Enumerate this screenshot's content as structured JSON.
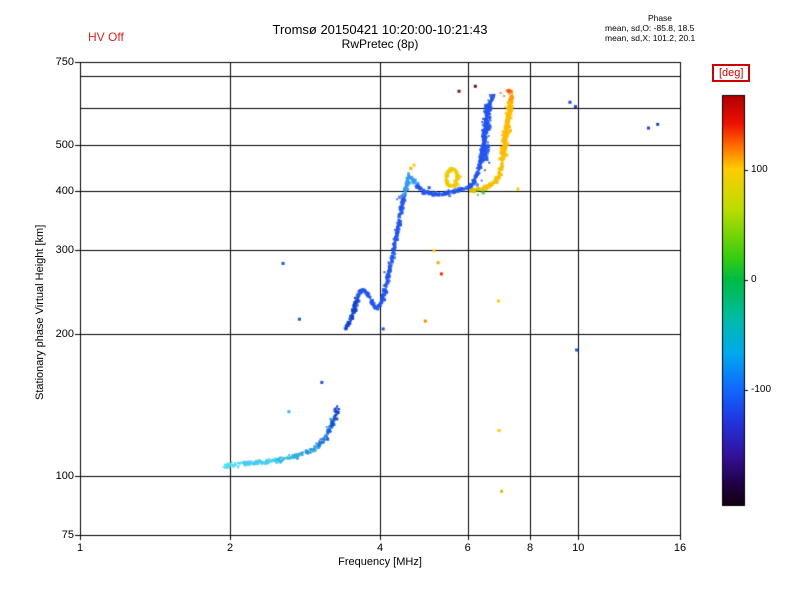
{
  "header": {
    "hv_status": "HV Off",
    "title": "Tromsø 20150421 10:20:00-10:21:43",
    "subtitle": "RwPretec (8p)",
    "phase_block": {
      "label": "Phase",
      "line_o": "mean, sd,O: -85.8, 18.5",
      "line_x": "mean, sd,X: 101.2, 20.1"
    }
  },
  "chart_data": {
    "type": "scatter",
    "title": "Tromsø 20150421 10:20:00-10:21:43",
    "subtitle": "RwPretec (8p)",
    "xlabel": "Frequency [MHz]",
    "ylabel": "Stationary phase Virtual Height [km]",
    "xscale": "log",
    "yscale": "log",
    "xlim": [
      1,
      16
    ],
    "ylim": [
      75,
      750
    ],
    "xticks": [
      1,
      2,
      4,
      6,
      8,
      10,
      16
    ],
    "yticks": [
      750,
      500,
      400,
      300,
      200,
      100,
      75
    ],
    "ygrid": [
      100,
      200,
      300,
      400,
      500,
      600,
      700
    ],
    "grid": true,
    "colorbar": {
      "label": "[deg]",
      "ticks": [
        100,
        0,
        -100
      ],
      "gradient": [
        [
          0,
          "#b00000"
        ],
        [
          0.07,
          "#ee1100"
        ],
        [
          0.12,
          "#ff6600"
        ],
        [
          0.18,
          "#ffcc00"
        ],
        [
          0.28,
          "#bbdd00"
        ],
        [
          0.4,
          "#33cc11"
        ],
        [
          0.45,
          "#00bb44"
        ],
        [
          0.55,
          "#00bbaa"
        ],
        [
          0.63,
          "#00aaee"
        ],
        [
          0.72,
          "#1166ff"
        ],
        [
          0.8,
          "#2233dd"
        ],
        [
          0.88,
          "#331199"
        ],
        [
          0.95,
          "#220044"
        ],
        [
          1,
          "#110011"
        ]
      ]
    },
    "traces": [
      {
        "name": "e-region",
        "color": "#33bbdd",
        "spread": 2.8,
        "density": 1.1,
        "passes": 2,
        "points": [
          [
            1.95,
            105,
            "#55ddee"
          ],
          [
            2.1,
            106,
            "#44ccee"
          ],
          [
            2.3,
            107,
            "#44ccee"
          ],
          [
            2.5,
            108,
            "#33bbdd"
          ],
          [
            2.7,
            110,
            "#33aadd"
          ],
          [
            2.85,
            112,
            "#2299dd"
          ],
          [
            3.0,
            116,
            "#2277dd"
          ],
          [
            3.12,
            121,
            "#1166dd"
          ],
          [
            3.2,
            128,
            "#1155cc"
          ],
          [
            3.26,
            135,
            "#1144cc"
          ],
          [
            3.29,
            140,
            "#2255cc"
          ]
        ]
      },
      {
        "name": "f-region-o",
        "color": "#2255ee",
        "spread": 2.2,
        "density": 1.2,
        "passes": 2,
        "points": [
          [
            3.42,
            205,
            "#1144cc"
          ],
          [
            3.5,
            216,
            "#1144cc"
          ],
          [
            3.56,
            228,
            "#1144cc"
          ],
          [
            3.61,
            240
          ],
          [
            3.67,
            248
          ],
          [
            3.75,
            246
          ],
          [
            3.81,
            237
          ],
          [
            3.87,
            229
          ],
          [
            3.95,
            227
          ],
          [
            4.03,
            234
          ],
          [
            4.1,
            250
          ],
          [
            4.18,
            274
          ],
          [
            4.28,
            308
          ],
          [
            4.38,
            352
          ],
          [
            4.46,
            392,
            "#3399ee"
          ],
          [
            4.52,
            416,
            "#3399ee"
          ],
          [
            4.58,
            430,
            "#3399ee"
          ],
          [
            4.66,
            424,
            "#3399ee"
          ],
          [
            4.75,
            410
          ],
          [
            4.9,
            400
          ],
          [
            5.1,
            394
          ],
          [
            5.3,
            394
          ],
          [
            5.5,
            398
          ],
          [
            5.7,
            402
          ],
          [
            5.9,
            404
          ],
          [
            6.05,
            408
          ],
          [
            6.15,
            416
          ],
          [
            6.25,
            432
          ],
          [
            6.33,
            452
          ],
          [
            6.4,
            480
          ],
          [
            6.46,
            512
          ],
          [
            6.52,
            548
          ],
          [
            6.57,
            582
          ],
          [
            6.61,
            605
          ],
          [
            6.66,
            620
          ],
          [
            6.72,
            630
          ],
          [
            6.78,
            638
          ]
        ]
      },
      {
        "name": "f-region-o-dense",
        "color": "#2255ee",
        "spread": 4.5,
        "density": 1.6,
        "passes": 2,
        "points": [
          [
            6.44,
            465
          ],
          [
            6.5,
            520
          ],
          [
            6.55,
            565
          ],
          [
            6.6,
            608
          ]
        ]
      },
      {
        "name": "x-loop",
        "color": "#eecc00",
        "spread": 2.0,
        "density": 1.1,
        "passes": 2,
        "points": [
          [
            5.42,
            425
          ],
          [
            5.47,
            440
          ],
          [
            5.57,
            447
          ],
          [
            5.67,
            442
          ],
          [
            5.73,
            430
          ],
          [
            5.68,
            415
          ],
          [
            5.57,
            409
          ],
          [
            5.47,
            413
          ],
          [
            5.42,
            425
          ]
        ]
      },
      {
        "name": "f-region-x",
        "color": "#f2c200",
        "spread": 2.2,
        "density": 1.2,
        "passes": 2,
        "points": [
          [
            6.05,
            400,
            "#ddbb00"
          ],
          [
            6.2,
            402,
            "#e6c200"
          ],
          [
            6.35,
            404
          ],
          [
            6.5,
            407
          ],
          [
            6.62,
            411
          ],
          [
            6.75,
            416
          ],
          [
            6.85,
            424
          ],
          [
            6.95,
            436
          ],
          [
            7.03,
            458
          ],
          [
            7.09,
            484
          ],
          [
            7.14,
            512
          ],
          [
            7.19,
            545
          ],
          [
            7.24,
            578
          ],
          [
            7.28,
            604,
            "#ffaa00"
          ],
          [
            7.32,
            626,
            "#ff9900"
          ],
          [
            7.34,
            640,
            "#ff7700"
          ],
          [
            7.28,
            650,
            "#ff5500"
          ],
          [
            7.18,
            654,
            "#ee2200"
          ]
        ]
      },
      {
        "name": "f-region-x-dense",
        "color": "#ffbb00",
        "spread": 4.0,
        "density": 1.5,
        "passes": 2,
        "points": [
          [
            7.06,
            478
          ],
          [
            7.18,
            545
          ],
          [
            7.29,
            615
          ]
        ]
      },
      {
        "name": "x-green-patch",
        "color": "#33bb33",
        "spread": 2.2,
        "density": 0.5,
        "passes": 1,
        "points": [
          [
            6.26,
            394
          ],
          [
            6.38,
            397
          ],
          [
            6.48,
            401
          ]
        ]
      }
    ],
    "points": [
      [
        2.55,
        282,
        "#2255dd"
      ],
      [
        2.75,
        215,
        "#2255dd"
      ],
      [
        2.62,
        137,
        "#33bbdd"
      ],
      [
        3.05,
        158,
        "#2255dd"
      ],
      [
        4.05,
        205,
        "#2255dd"
      ],
      [
        4.6,
        448,
        "#ffaa00"
      ],
      [
        4.67,
        455,
        "#ffcc00"
      ],
      [
        4.92,
        213,
        "#ff8800"
      ],
      [
        5.12,
        300,
        "#ffcc00"
      ],
      [
        5.22,
        283,
        "#ffaa00"
      ],
      [
        5.3,
        268,
        "#ee3300"
      ],
      [
        5.75,
        652,
        "#881111"
      ],
      [
        6.2,
        668,
        "#771111"
      ],
      [
        6.9,
        235,
        "#ffcc00"
      ],
      [
        6.92,
        125,
        "#ffcc00"
      ],
      [
        7.0,
        93,
        "#ddbb00"
      ],
      [
        7.55,
        405,
        "#ffcc00"
      ],
      [
        9.6,
        618,
        "#2244cc"
      ],
      [
        9.85,
        605,
        "#2244cc"
      ],
      [
        9.9,
        185,
        "#2255dd"
      ],
      [
        13.8,
        545,
        "#2244cc"
      ],
      [
        14.4,
        555,
        "#2244cc"
      ]
    ]
  },
  "colors": {
    "background": "#ffffff",
    "axis": "#000000",
    "hv_text": "#dd2222",
    "deg_label": "#cc0000",
    "o_mode": "#2255ee",
    "x_mode": "#f2c200",
    "e_region": "#33bbdd"
  }
}
